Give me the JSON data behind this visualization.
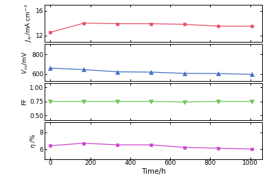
{
  "time": [
    0,
    168,
    336,
    504,
    672,
    840,
    1008
  ],
  "jsc": [
    12.5,
    14.0,
    13.9,
    13.9,
    13.8,
    13.5,
    13.5
  ],
  "voc": [
    660,
    645,
    622,
    619,
    606,
    604,
    596
  ],
  "ff": [
    0.75,
    0.75,
    0.75,
    0.75,
    0.74,
    0.75,
    0.75
  ],
  "eta": [
    6.4,
    6.7,
    6.5,
    6.5,
    6.2,
    6.1,
    6.0
  ],
  "color_jsc": "#e8506a",
  "color_voc": "#4472c4",
  "color_ff": "#72c455",
  "color_eta": "#cc44cc",
  "ylabel_jsc": "$J_{sc}$/mA cm$^{-2}$",
  "ylabel_voc": "$V_{oc}$/mV",
  "ylabel_ff": "FF",
  "ylabel_eta": "$\\eta$ /%",
  "xlabel": "Time/h",
  "ylim_jsc": [
    11.0,
    17.0
  ],
  "ylim_voc": [
    530,
    910
  ],
  "ylim_ff": [
    0.42,
    1.08
  ],
  "ylim_eta": [
    4.8,
    9.2
  ],
  "yticks_jsc": [
    12,
    16
  ],
  "yticks_voc": [
    600,
    800
  ],
  "yticks_ff": [
    0.5,
    0.75,
    1.0
  ],
  "yticks_eta": [
    6,
    8
  ],
  "xlim": [
    -30,
    1060
  ],
  "xticks": [
    0,
    200,
    400,
    600,
    800,
    1000
  ]
}
